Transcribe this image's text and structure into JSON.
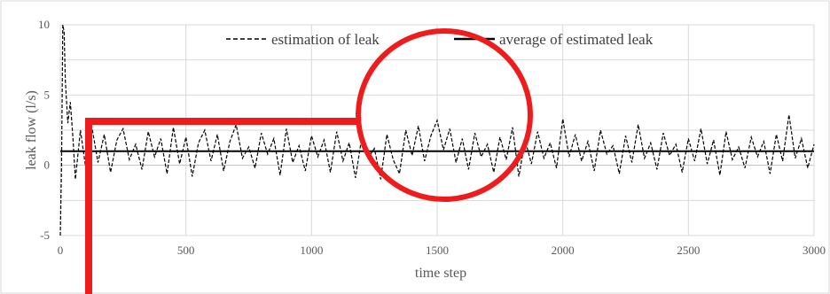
{
  "chart_data": {
    "type": "line",
    "xlabel": "time step",
    "ylabel": "leak flow (l/s)",
    "xlim": [
      0,
      3000
    ],
    "ylim": [
      -5,
      10
    ],
    "x_ticks": [
      "0",
      "500",
      "1000",
      "1500",
      "2000",
      "2500",
      "3000"
    ],
    "y_ticks": [
      "-5",
      "0",
      "5",
      "10"
    ],
    "grid": true,
    "legend_position": "top-center",
    "series": [
      {
        "name": "estimation of leak",
        "style": "dashed",
        "color": "#000000",
        "x": [
          0,
          5,
          10,
          15,
          20,
          30,
          40,
          50,
          60,
          80,
          100,
          125,
          150,
          175,
          200,
          225,
          250,
          275,
          300,
          325,
          350,
          375,
          400,
          425,
          450,
          475,
          500,
          525,
          550,
          575,
          600,
          625,
          650,
          675,
          700,
          725,
          750,
          775,
          800,
          825,
          850,
          875,
          900,
          925,
          950,
          975,
          1000,
          1025,
          1050,
          1075,
          1100,
          1125,
          1150,
          1175,
          1200,
          1225,
          1250,
          1275,
          1300,
          1325,
          1350,
          1375,
          1400,
          1425,
          1450,
          1475,
          1500,
          1525,
          1550,
          1575,
          1600,
          1625,
          1650,
          1675,
          1700,
          1725,
          1750,
          1775,
          1800,
          1825,
          1850,
          1875,
          1900,
          1925,
          1950,
          1975,
          2000,
          2025,
          2050,
          2075,
          2100,
          2125,
          2150,
          2175,
          2200,
          2225,
          2250,
          2275,
          2300,
          2325,
          2350,
          2375,
          2400,
          2425,
          2450,
          2475,
          2500,
          2525,
          2550,
          2575,
          2600,
          2625,
          2650,
          2675,
          2700,
          2725,
          2750,
          2775,
          2800,
          2825,
          2850,
          2875,
          2900,
          2925,
          2950,
          2975,
          3000
        ],
        "values": [
          -5,
          0,
          10,
          9.5,
          6,
          3,
          4.5,
          2,
          -1,
          2.5,
          0,
          2.8,
          0.2,
          2.2,
          -0.5,
          1.8,
          2.6,
          0.4,
          1.5,
          -0.3,
          2.4,
          0.6,
          1.9,
          -0.6,
          2.7,
          0.1,
          2.0,
          -0.8,
          1.6,
          2.5,
          0.3,
          2.2,
          -0.4,
          1.7,
          2.9,
          0.5,
          1.3,
          -0.2,
          2.3,
          0.8,
          1.9,
          -0.7,
          2.6,
          0.2,
          1.4,
          -0.4,
          2.1,
          0.6,
          1.8,
          -0.5,
          2.4,
          0.3,
          1.6,
          -0.9,
          2.0,
          0.5,
          1.2,
          -1.0,
          2.2,
          0.4,
          -0.6,
          2.5,
          0.7,
          2.8,
          0.3,
          2.1,
          3.2,
          1.1,
          2.6,
          0.2,
          1.9,
          -0.3,
          2.3,
          0.6,
          1.5,
          -0.5,
          2.0,
          0.4,
          2.7,
          -0.8,
          1.8,
          0.1,
          2.4,
          0.5,
          1.6,
          -0.2,
          3.3,
          0.6,
          2.2,
          0.3,
          1.7,
          -0.4,
          2.5,
          0.8,
          1.4,
          -0.6,
          2.1,
          0.2,
          2.9,
          0.5,
          1.6,
          -0.3,
          2.3,
          0.7,
          1.5,
          -0.5,
          1.9,
          0.3,
          2.6,
          0.1,
          1.8,
          -0.7,
          2.4,
          0.4,
          1.3,
          -0.2,
          2.0,
          0.6,
          1.7,
          -0.6,
          2.2,
          0.3,
          3.6,
          0.5,
          1.9,
          -0.2,
          1.5
        ]
      },
      {
        "name": "average of estimated leak",
        "style": "solid",
        "color": "#000000",
        "x": [
          0,
          3000
        ],
        "values": [
          1.0,
          1.0
        ]
      }
    ]
  },
  "annotations": {
    "highlight_color": "#ee1c1c"
  }
}
